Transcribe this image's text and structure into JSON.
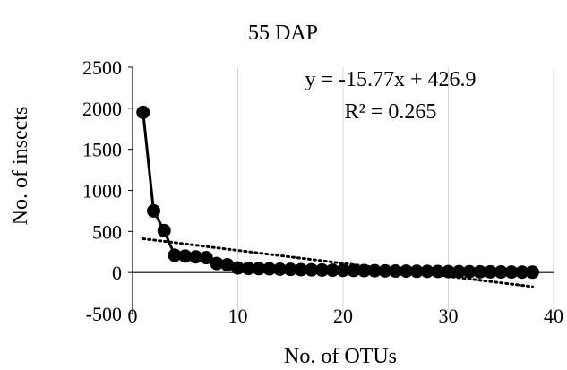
{
  "chart_data": {
    "type": "line",
    "title": "55 DAP",
    "xlabel": "No. of OTUs",
    "ylabel": "No. of insects",
    "xlim": [
      0,
      40
    ],
    "ylim": [
      -500,
      2500
    ],
    "x_ticks": [
      0,
      10,
      20,
      30,
      40
    ],
    "y_ticks": [
      -500,
      0,
      500,
      1000,
      1500,
      2000,
      2500
    ],
    "x_tick_labels": [
      "0",
      "10",
      "20",
      "30",
      "40"
    ],
    "y_tick_labels": [
      "-500",
      "0",
      "500",
      "1000",
      "1500",
      "2000",
      "2500"
    ],
    "grid": "vertical",
    "legend": "none",
    "series": [
      {
        "style": "line-with-markers",
        "color": "#000000",
        "x": [
          1,
          2,
          3,
          4,
          5,
          6,
          7,
          8,
          9,
          10,
          11,
          12,
          13,
          14,
          15,
          16,
          17,
          18,
          19,
          20,
          21,
          22,
          23,
          24,
          25,
          26,
          27,
          28,
          29,
          30,
          31,
          32,
          33,
          34,
          35,
          36,
          37,
          38
        ],
        "y": [
          1950,
          750,
          510,
          210,
          200,
          190,
          180,
          110,
          95,
          55,
          50,
          48,
          45,
          40,
          38,
          35,
          33,
          30,
          28,
          27,
          25,
          23,
          22,
          20,
          18,
          17,
          15,
          14,
          13,
          12,
          11,
          10,
          9,
          8,
          7,
          6,
          5,
          4
        ]
      }
    ],
    "trendline": {
      "type": "linear",
      "slope": -15.77,
      "intercept": 426.9,
      "style": "dotted",
      "color": "#000000",
      "x_range": [
        1,
        38
      ]
    },
    "annotations": {
      "equation": "y = -15.77x + 426.9",
      "r_squared": "R² = 0.265"
    }
  }
}
